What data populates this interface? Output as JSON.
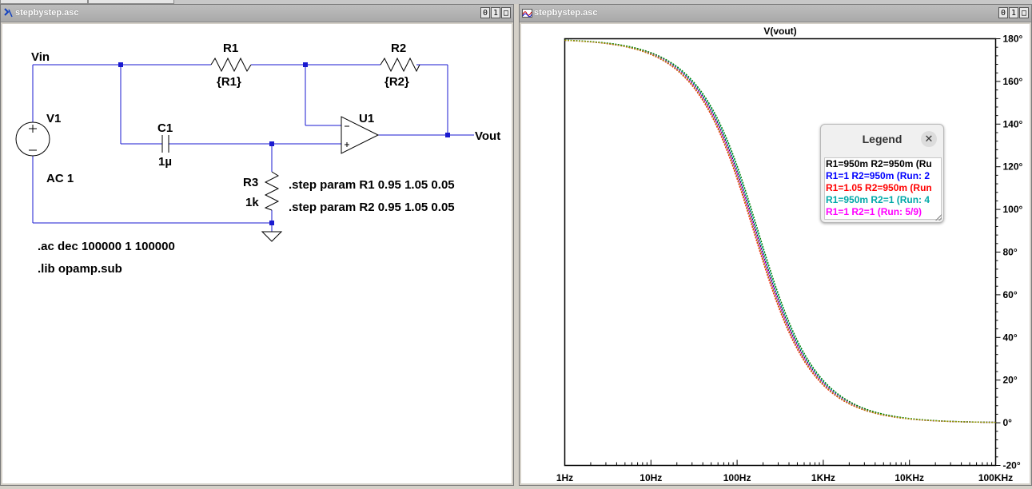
{
  "schematic_window": {
    "title": "stepbystep.asc",
    "buttons": [
      "0",
      "1",
      "□"
    ],
    "labels": {
      "vin": "Vin",
      "vout": "Vout",
      "v1": "V1",
      "ac": "AC 1",
      "r1": "R1",
      "r1_val": "{R1}",
      "r2": "R2",
      "r2_val": "{R2}",
      "c1": "C1",
      "c1_val": "1µ",
      "u1": "U1",
      "r3": "R3",
      "r3_val": "1k"
    },
    "directives": {
      "step1": ".step param R1 0.95 1.05 0.05",
      "step2": ".step param R2 0.95 1.05 0.05",
      "ac": ".ac dec 100000 1 100000",
      "lib": ".lib opamp.sub"
    }
  },
  "plot_window": {
    "title": "stepbystep.asc",
    "buttons": [
      "0",
      "1",
      "□"
    ],
    "trace_title": "V(vout)",
    "x_ticks": [
      "1Hz",
      "10Hz",
      "100Hz",
      "1KHz",
      "10KHz",
      "100KHz"
    ],
    "y_ticks": [
      "180°",
      "160°",
      "140°",
      "120°",
      "100°",
      "80°",
      "60°",
      "40°",
      "20°",
      "0°",
      "-20°"
    ]
  },
  "legend": {
    "title": "Legend",
    "close": "✕",
    "entries": [
      {
        "text": "R1=950m R2=950m  (Ru",
        "color": "#000000"
      },
      {
        "text": "R1=1 R2=950m  (Run: 2",
        "color": "#0000ff"
      },
      {
        "text": "R1=1.05 R2=950m  (Run",
        "color": "#ff0000"
      },
      {
        "text": "R1=950m R2=1  (Run: 4",
        "color": "#00a8a8"
      },
      {
        "text": "R1=1 R2=1  (Run: 5/9)",
        "color": "#ff00ff"
      }
    ]
  },
  "chart_data": {
    "type": "line",
    "title": "V(vout)",
    "x_scale": "log",
    "xlim_hz": [
      1,
      100000
    ],
    "ylim_deg": [
      -20,
      180
    ],
    "ylabel": "",
    "xlabel": "",
    "series": [
      {
        "name": "R1=950m R2=950m",
        "color": "#000000",
        "fc_hz": 165
      },
      {
        "name": "R1=1 R2=950m",
        "color": "#0000ff",
        "fc_hz": 160
      },
      {
        "name": "R1=1.05 R2=950m",
        "color": "#ff0000",
        "fc_hz": 155
      },
      {
        "name": "R1=950m R2=1",
        "color": "#00a8a8",
        "fc_hz": 170
      },
      {
        "name": "R1=1 R2=1",
        "color": "#ff00ff",
        "fc_hz": 162
      },
      {
        "name": "",
        "color": "#008000",
        "fc_hz": 175
      },
      {
        "name": "",
        "color": "#a0a000",
        "fc_hz": 158
      }
    ]
  }
}
